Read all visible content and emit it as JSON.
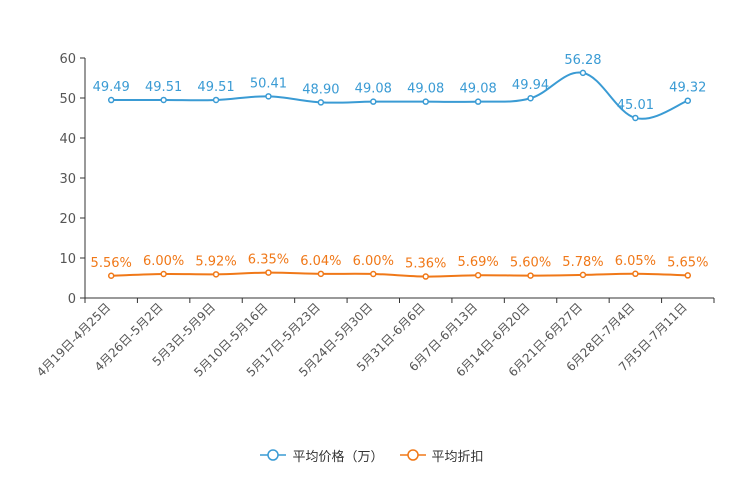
{
  "chart_data": {
    "type": "line",
    "categories": [
      "4月19日-4月25日",
      "4月26日-5月2日",
      "5月3日-5月9日",
      "5月10日-5月16日",
      "5月17日-5月23日",
      "5月24日-5月30日",
      "5月31日-6月6日",
      "6月7日-6月13日",
      "6月14日-6月20日",
      "6月21日-6月27日",
      "6月28日-7月4日",
      "7月5日-7月11日"
    ],
    "series": [
      {
        "name": "平均价格（万）",
        "color": "#3a9bd4",
        "values": [
          49.49,
          49.51,
          49.51,
          50.41,
          48.9,
          49.08,
          49.08,
          49.08,
          49.94,
          56.28,
          45.01,
          49.32
        ],
        "labels": [
          "49.49",
          "49.51",
          "49.51",
          "50.41",
          "48.90",
          "49.08",
          "49.08",
          "49.08",
          "49.94",
          "56.28",
          "45.01",
          "49.32"
        ]
      },
      {
        "name": "平均折扣",
        "color": "#f07818",
        "values": [
          5.56,
          6.0,
          5.92,
          6.35,
          6.04,
          6.0,
          5.36,
          5.69,
          5.6,
          5.78,
          6.05,
          5.65
        ],
        "labels": [
          "5.56%",
          "6.00%",
          "5.92%",
          "6.35%",
          "6.04%",
          "6.00%",
          "5.36%",
          "5.69%",
          "5.60%",
          "5.78%",
          "6.05%",
          "5.65%"
        ]
      }
    ],
    "ylim": [
      0,
      60
    ],
    "yticks": [
      "0",
      "10",
      "20",
      "30",
      "40",
      "50",
      "60"
    ],
    "legend_position": "bottom-center"
  }
}
